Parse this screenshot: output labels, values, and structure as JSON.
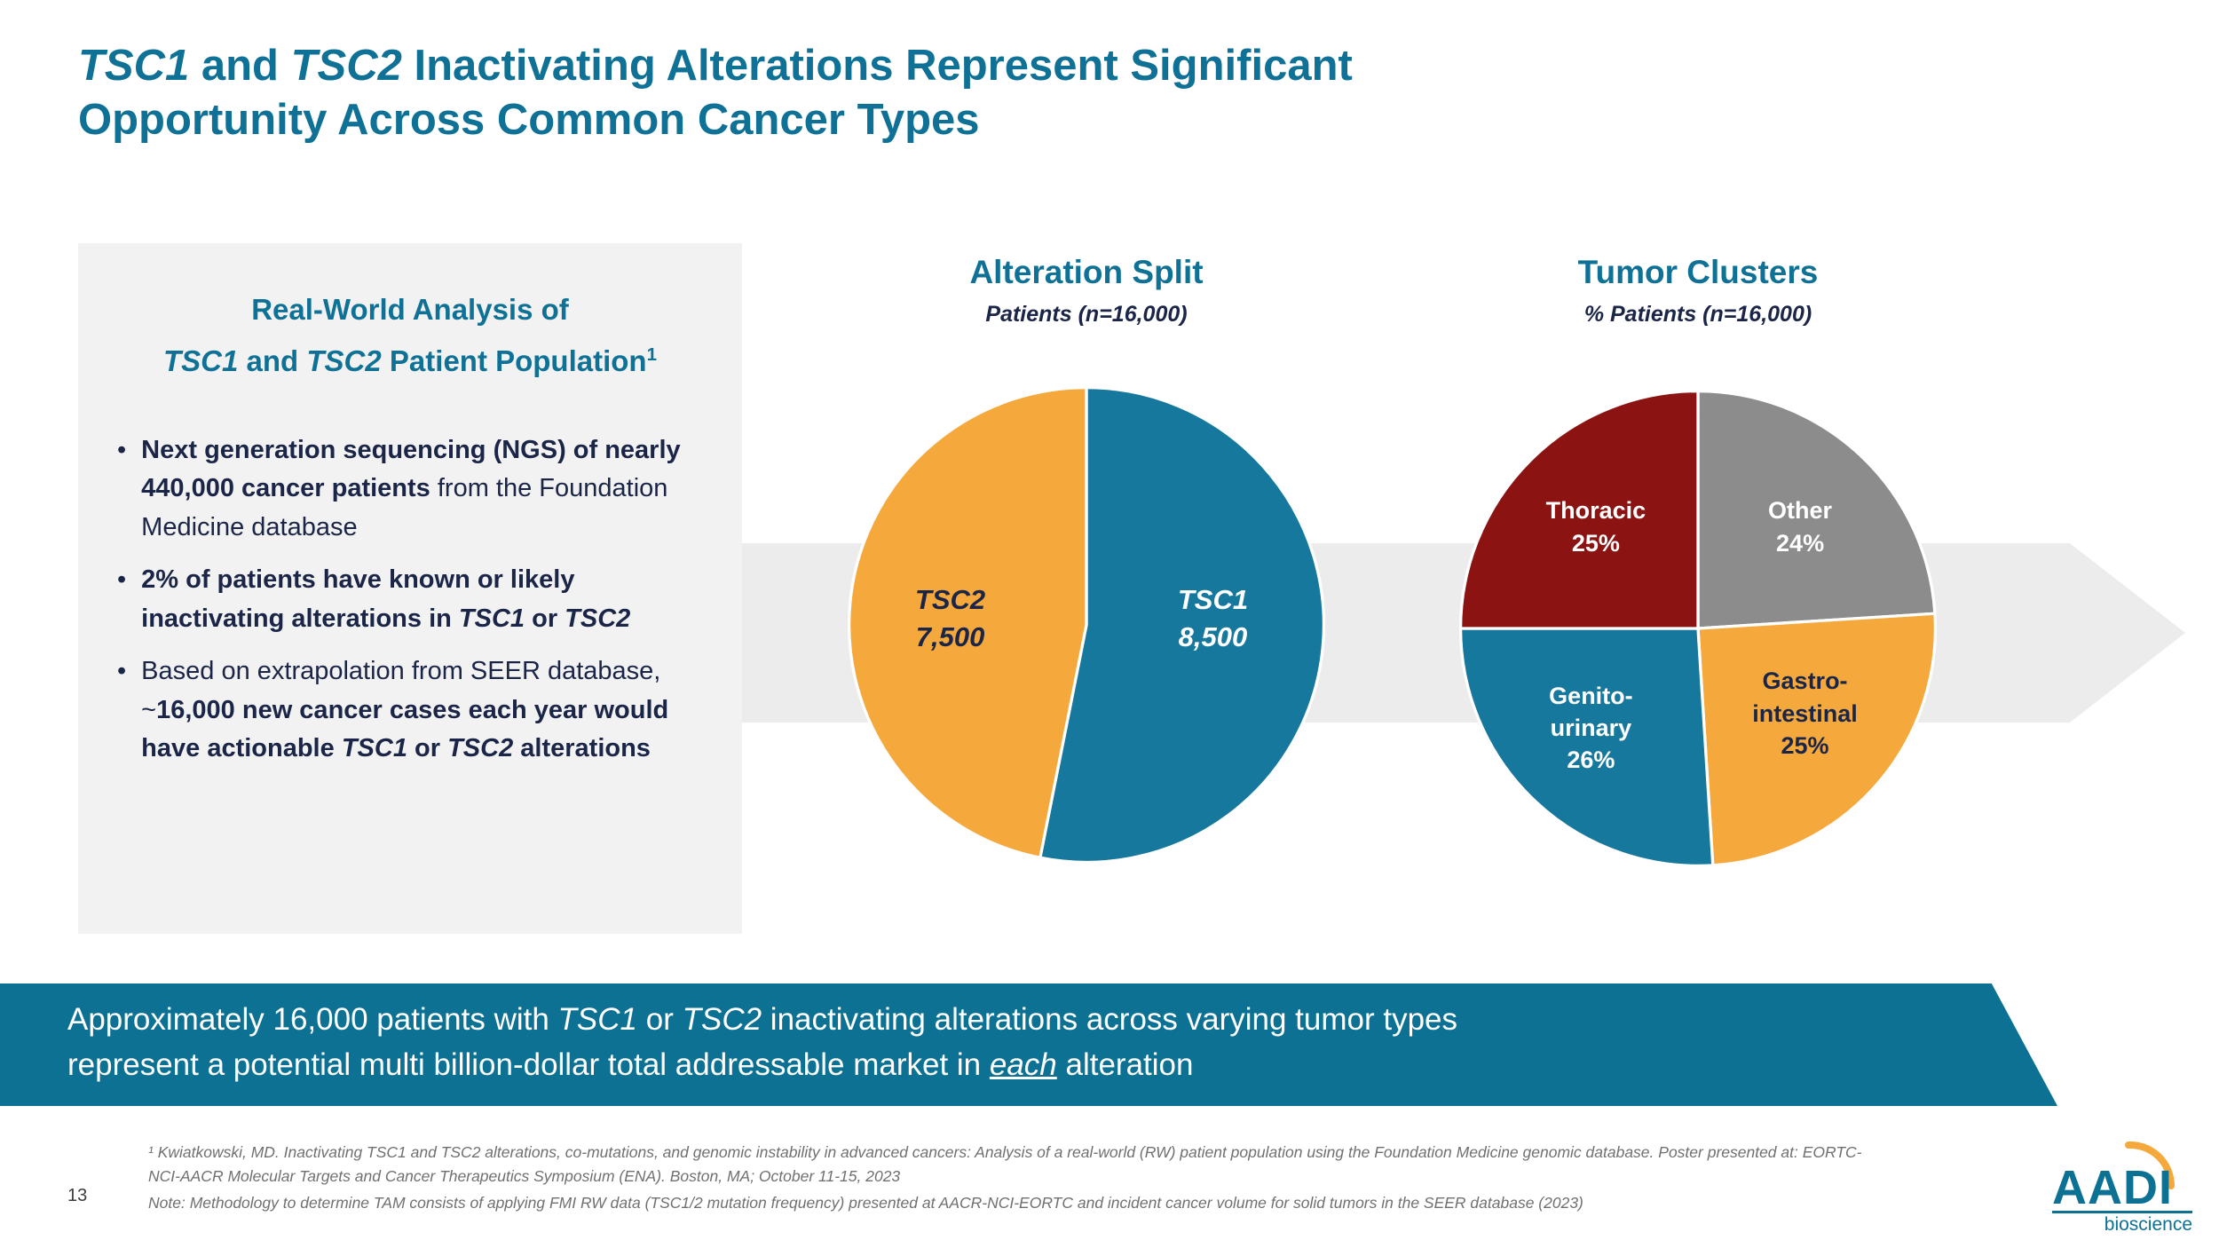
{
  "page": {
    "number": "13"
  },
  "colors": {
    "teal": "#0F7195",
    "navy": "#1B2547",
    "orange": "#F5A93C",
    "dark_red": "#8B1412",
    "gray_slice": "#8C8C8C",
    "band_gray": "#ECECEC",
    "panel_gray": "#F2F2F2"
  },
  "title": {
    "line1_parts": [
      {
        "t": "TSC1",
        "i": true
      },
      {
        "t": " and "
      },
      {
        "t": "TSC2",
        "i": true
      },
      {
        "t": " Inactivating Alterations Represent Significant"
      }
    ],
    "line2": "Opportunity Across Common Cancer Types"
  },
  "panel": {
    "heading_line1": "Real-World Analysis of",
    "heading_line2_parts": [
      {
        "t": "TSC1",
        "i": true
      },
      {
        "t": " and "
      },
      {
        "t": "TSC2",
        "i": true
      },
      {
        "t": " Patient Population"
      },
      {
        "t": "1",
        "sup": true
      }
    ],
    "bullets": [
      {
        "parts": [
          {
            "t": "Next generation sequencing (NGS) of nearly 440,000 cancer patients ",
            "b": true
          },
          {
            "t": "from the Foundation Medicine database"
          }
        ]
      },
      {
        "parts": [
          {
            "t": "2% of patients have known or likely inactivating alterations in ",
            "b": true
          },
          {
            "t": "TSC1",
            "b": true,
            "i": true
          },
          {
            "t": " or ",
            "b": true
          },
          {
            "t": "TSC2",
            "b": true,
            "i": true
          }
        ]
      },
      {
        "parts": [
          {
            "t": "Based on extrapolation from SEER database, ~"
          },
          {
            "t": "16,000 new cancer cases each year would have actionable ",
            "b": true
          },
          {
            "t": "TSC1",
            "b": true,
            "i": true
          },
          {
            "t": " or ",
            "b": true
          },
          {
            "t": "TSC2",
            "b": true,
            "i": true
          },
          {
            "t": " alterations",
            "b": true
          }
        ]
      }
    ]
  },
  "chart_data": [
    {
      "type": "pie",
      "title": "Alteration Split",
      "subtitle": "Patients (n=16,000)",
      "total_patients": 16000,
      "legend_position": "inside",
      "slices": [
        {
          "label": "TSC1",
          "value": 8500,
          "value_label": "8,500",
          "color": "#17789E"
        },
        {
          "label": "TSC2",
          "value": 7500,
          "value_label": "7,500",
          "color": "#F5A93C"
        }
      ]
    },
    {
      "type": "pie",
      "title": "Tumor Clusters",
      "subtitle": "% Patients (n=16,000)",
      "legend_position": "inside",
      "slices": [
        {
          "label": "Other",
          "pct": 24,
          "pct_label": "24%",
          "color": "#8C8C8C",
          "label_lines": [
            "Other"
          ]
        },
        {
          "label": "Gastro-intestinal",
          "pct": 25,
          "pct_label": "25%",
          "color": "#F5A93C",
          "label_lines": [
            "Gastro-",
            "intestinal"
          ]
        },
        {
          "label": "Genito-urinary",
          "pct": 26,
          "pct_label": "26%",
          "color": "#17789E",
          "label_lines": [
            "Genito-",
            "urinary"
          ]
        },
        {
          "label": "Thoracic",
          "pct": 25,
          "pct_label": "25%",
          "color": "#8B1412",
          "label_lines": [
            "Thoracic"
          ]
        }
      ]
    }
  ],
  "banner": {
    "parts": [
      {
        "t": "Approximately 16,000 patients with "
      },
      {
        "t": "TSC1",
        "i": true
      },
      {
        "t": " or "
      },
      {
        "t": "TSC2",
        "i": true
      },
      {
        "t": " inactivating alterations across varying tumor types"
      },
      {
        "br": true
      },
      {
        "t": "represent a potential multi billion-dollar total addressable market in "
      },
      {
        "t": "each",
        "i": true,
        "u": true
      },
      {
        "t": " alteration"
      }
    ]
  },
  "footnotes": {
    "ref": "¹ Kwiatkowski, MD. Inactivating TSC1 and TSC2 alterations, co-mutations, and genomic instability in advanced cancers: Analysis of a real-world (RW) patient population using the Foundation Medicine genomic database. Poster presented at: EORTC-NCI-AACR Molecular Targets and Cancer Therapeutics Symposium (ENA). Boston, MA; October 11-15, 2023",
    "note": "Note: Methodology to determine TAM consists of applying FMI RW data (TSC1/2 mutation frequency) presented at AACR-NCI-EORTC and incident cancer volume for solid tumors in the SEER database (2023)"
  },
  "logo": {
    "name": "AADI",
    "sub": "bioscience"
  }
}
